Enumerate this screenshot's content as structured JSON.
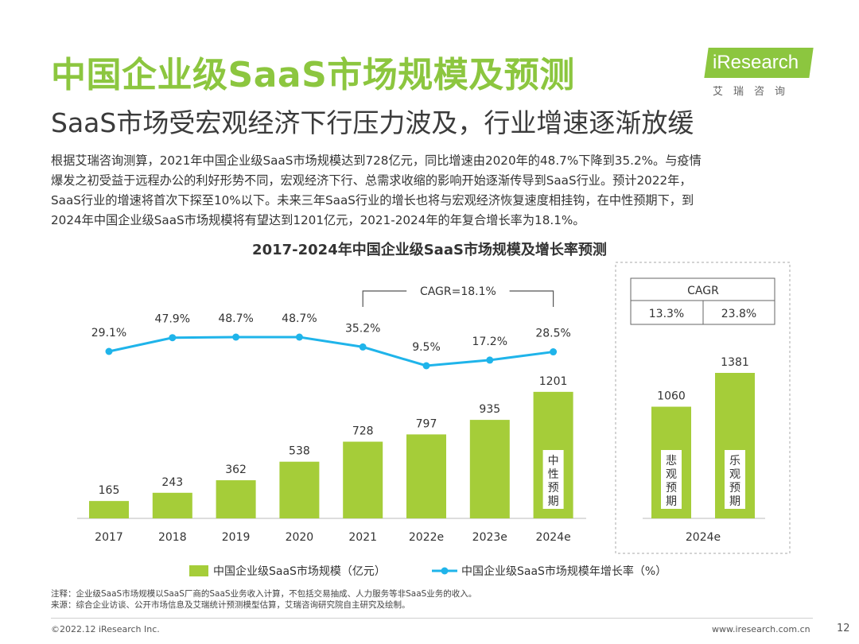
{
  "header": {
    "title": "中国企业级SaaS市场规模及预测",
    "subtitle": "SaaS市场受宏观经济下行压力波及，行业增速逐渐放缓",
    "logo_text": "iResearch",
    "logo_sub": "艾瑞咨询"
  },
  "body": {
    "lines": [
      "根据艾瑞咨询测算，2021年中国企业级SaaS市场规模达到728亿元，同比增速由2020年的48.7%下降到35.2%。与疫情",
      "爆发之初受益于远程办公的利好形势不同，宏观经济下行、总需求收缩的影响开始逐渐传导到SaaS行业。预计2022年，",
      "SaaS行业的增速将首次下探至10%以下。未来三年SaaS行业的增长也将与宏观经济恢复速度相挂钩，在中性预期下，到",
      "2024年中国企业级SaaS市场规模将有望达到1201亿元，2021-2024年的年复合增长率为18.1%。"
    ]
  },
  "chart_data": {
    "type": "bar",
    "title": "2017-2024年中国企业级SaaS市场规模及增长率预测",
    "categories": [
      "2017",
      "2018",
      "2019",
      "2020",
      "2021",
      "2022e",
      "2023e",
      "2024e"
    ],
    "series": [
      {
        "name": "中国企业级SaaS市场规模（亿元）",
        "type": "bar",
        "values": [
          165,
          243,
          362,
          538,
          728,
          797,
          935,
          1201
        ],
        "color": "#a5cd39"
      },
      {
        "name": "中国企业级SaaS市场规模年增长率（%）",
        "type": "line",
        "values": [
          29.1,
          47.9,
          48.7,
          48.7,
          35.2,
          9.5,
          17.2,
          28.5
        ],
        "labels": [
          "29.1%",
          "47.9%",
          "48.7%",
          "48.7%",
          "35.2%",
          "9.5%",
          "17.2%",
          "28.5%"
        ],
        "color": "#1fb4ea"
      }
    ],
    "cagr_label": "CAGR=18.1%",
    "neutral_label": [
      "中",
      "性",
      "预",
      "期"
    ],
    "scenario": {
      "category": "2024e",
      "bars": [
        {
          "label": [
            "悲",
            "观",
            "预",
            "期"
          ],
          "value": 1060
        },
        {
          "label": [
            "乐",
            "观",
            "预",
            "期"
          ],
          "value": 1381
        }
      ],
      "cagr_table": {
        "header": "CAGR",
        "values": [
          "13.3%",
          "23.8%"
        ]
      }
    },
    "legend_position": "bottom"
  },
  "colors": {
    "accent": "#8cc63f",
    "bar": "#a5cd39",
    "line": "#1fb4ea"
  },
  "notes": [
    "注释：企业级SaaS市场规模以SaaS厂商的SaaS业务收入计算，不包括交易抽成、人力服务等非SaaS业务的收入。",
    "来源：综合企业访谈、公开市场信息及艾瑞统计预测模型估算，艾瑞咨询研究院自主研究及绘制。"
  ],
  "footer": {
    "copyright": "©2022.12 iResearch Inc.",
    "website": "www.iresearch.com.cn",
    "page": "12"
  }
}
